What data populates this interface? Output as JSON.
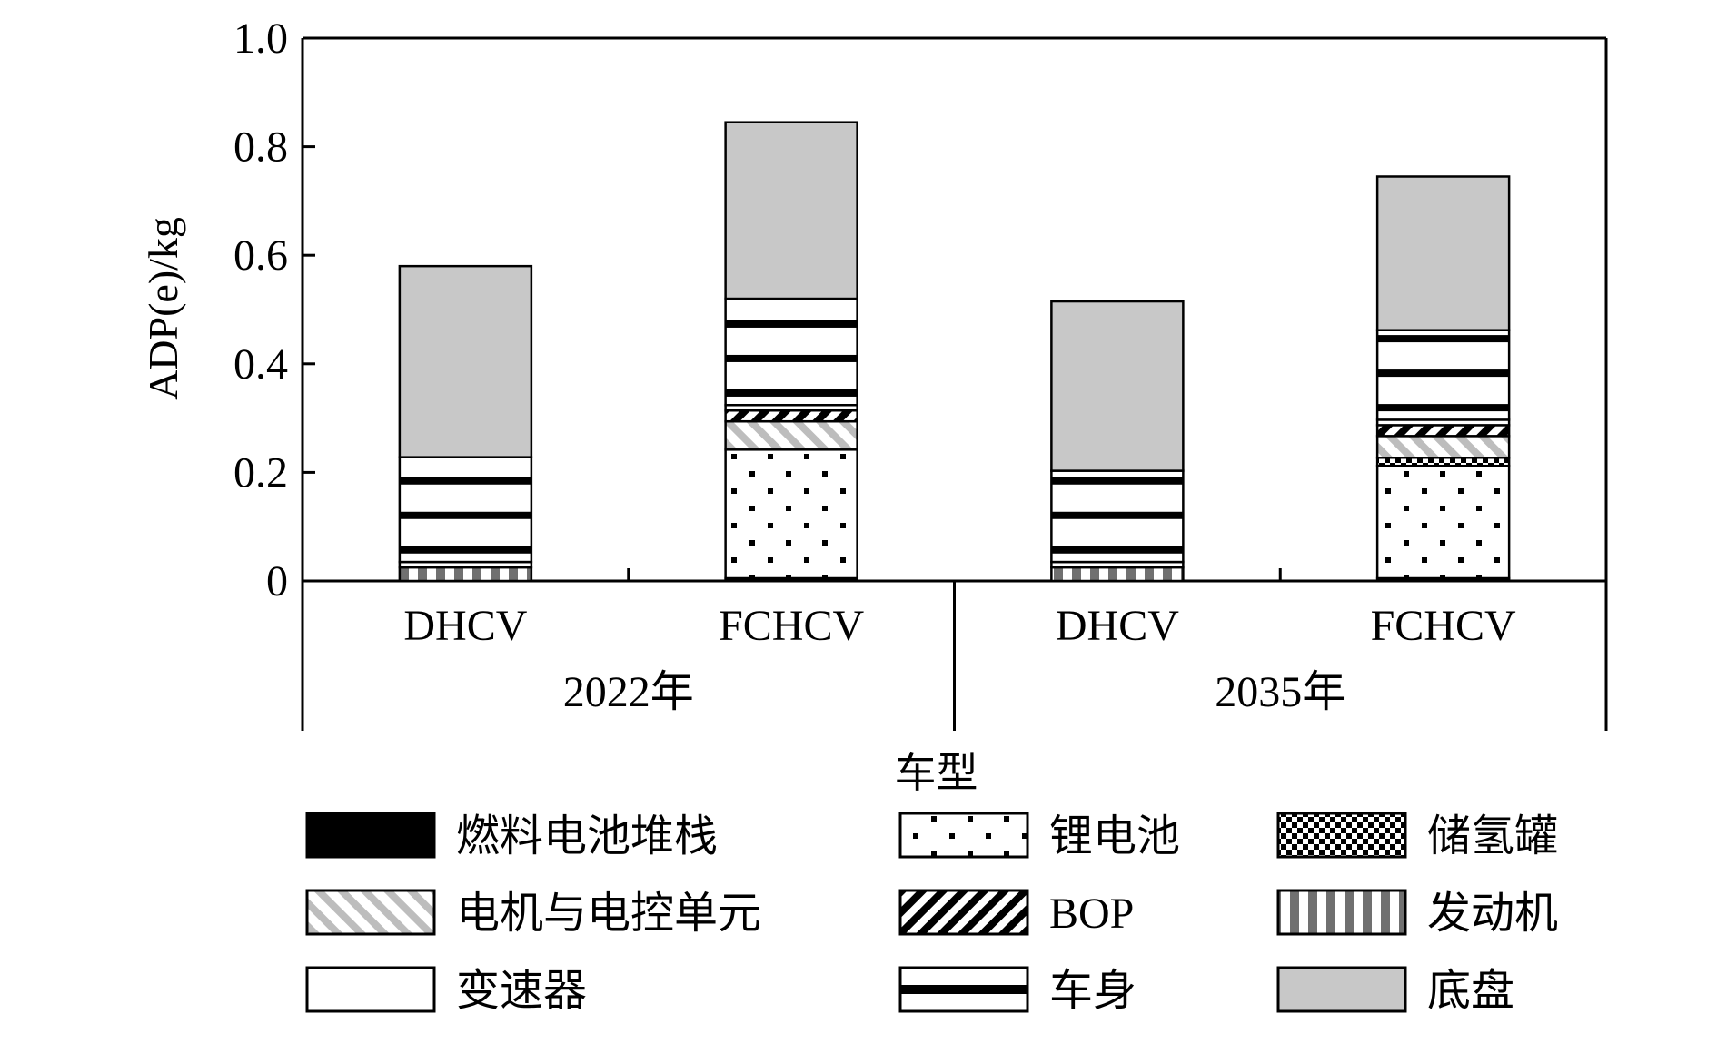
{
  "chart_data": {
    "type": "bar",
    "stacked": true,
    "ylabel": "ADP(e)/kg",
    "xlabel": "车型",
    "ylim": [
      0,
      1.0
    ],
    "yticks": [
      "0",
      "0.2",
      "0.4",
      "0.6",
      "0.8",
      "1.0"
    ],
    "grid": false,
    "legend_position": "bottom",
    "groups": [
      {
        "label": "2022年",
        "categories": [
          "DHCV",
          "FCHCV"
        ]
      },
      {
        "label": "2035年",
        "categories": [
          "DHCV",
          "FCHCV"
        ]
      }
    ],
    "categories": [
      "DHCV",
      "FCHCV",
      "DHCV",
      "FCHCV"
    ],
    "series": [
      {
        "name": "燃料电池堆栈",
        "pattern": "solid-black",
        "values": [
          0,
          0.005,
          0,
          0.005
        ]
      },
      {
        "name": "锂电池",
        "pattern": "dots",
        "values": [
          0,
          0.237,
          0,
          0.207
        ]
      },
      {
        "name": "储氢罐",
        "pattern": "checker",
        "values": [
          0,
          0,
          0,
          0.015
        ]
      },
      {
        "name": "电机与电控单元",
        "pattern": "diagonal-gray",
        "values": [
          0,
          0.052,
          0,
          0.04
        ]
      },
      {
        "name": "BOP",
        "pattern": "diagonal-black",
        "values": [
          0,
          0.02,
          0,
          0.02
        ]
      },
      {
        "name": "发动机",
        "pattern": "vertical-gray",
        "values": [
          0.025,
          0,
          0.025,
          0
        ]
      },
      {
        "name": "变速器",
        "pattern": "white",
        "values": [
          0.01,
          0.01,
          0.01,
          0.01
        ]
      },
      {
        "name": "车身",
        "pattern": "horizontal-lines",
        "values": [
          0.193,
          0.196,
          0.168,
          0.165
        ]
      },
      {
        "name": "底盘",
        "pattern": "solid-gray",
        "values": [
          0.352,
          0.325,
          0.312,
          0.283
        ]
      }
    ],
    "colors": {
      "axis": "#000000",
      "gray_fill": "#c8c8c8",
      "light_gray": "#bdbdbd"
    }
  }
}
